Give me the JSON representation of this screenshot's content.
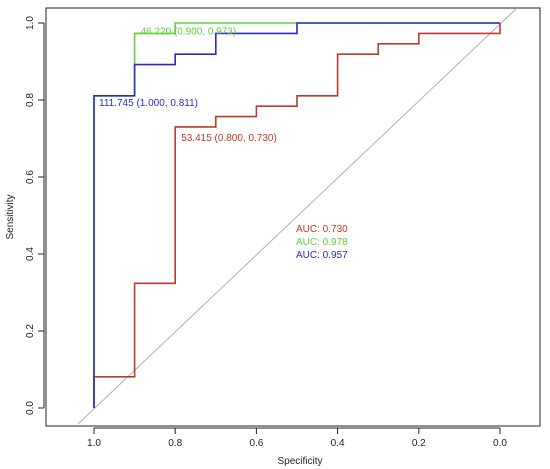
{
  "chart_data": {
    "type": "line",
    "title": "",
    "xlabel": "Specificity",
    "ylabel": "Sensitivity",
    "xlim": [
      1.0,
      0.0
    ],
    "ylim": [
      0.0,
      1.0
    ],
    "x_ticks": [
      "1.0",
      "0.8",
      "0.6",
      "0.4",
      "0.2",
      "0.0"
    ],
    "y_ticks": [
      "0.0",
      "0.2",
      "0.4",
      "0.6",
      "0.8",
      "1.0"
    ],
    "x_tick_values": [
      1.0,
      0.8,
      0.6,
      0.4,
      0.2,
      0.0
    ],
    "y_tick_values": [
      0.0,
      0.2,
      0.4,
      0.6,
      0.8,
      1.0
    ],
    "diagonal": {
      "color": "#b0b0b0"
    },
    "series": [
      {
        "color": "#c0392b",
        "auc_label": "AUC: 0.730",
        "points": [
          [
            1.0,
            0.0
          ],
          [
            1.0,
            0.081
          ],
          [
            0.9,
            0.081
          ],
          [
            0.9,
            0.324
          ],
          [
            0.8,
            0.324
          ],
          [
            0.8,
            0.73
          ],
          [
            0.7,
            0.73
          ],
          [
            0.7,
            0.757
          ],
          [
            0.6,
            0.757
          ],
          [
            0.6,
            0.784
          ],
          [
            0.5,
            0.784
          ],
          [
            0.5,
            0.811
          ],
          [
            0.4,
            0.811
          ],
          [
            0.4,
            0.919
          ],
          [
            0.3,
            0.919
          ],
          [
            0.3,
            0.946
          ],
          [
            0.2,
            0.946
          ],
          [
            0.2,
            0.973
          ],
          [
            0.0,
            0.973
          ],
          [
            0.0,
            1.0
          ]
        ],
        "threshold_label": "53.415 (0.800, 0.730)",
        "threshold_point": [
          0.8,
          0.73
        ]
      },
      {
        "color": "#5fd138",
        "auc_label": "AUC: 0.978",
        "points": [
          [
            1.0,
            0.0
          ],
          [
            1.0,
            0.811
          ],
          [
            0.9,
            0.811
          ],
          [
            0.9,
            0.973
          ],
          [
            0.8,
            0.973
          ],
          [
            0.8,
            1.0
          ],
          [
            0.0,
            1.0
          ]
        ],
        "threshold_label": "46.220 (0.900, 0.973)",
        "threshold_point": [
          0.9,
          0.973
        ]
      },
      {
        "color": "#2a2ac8",
        "auc_label": "AUC: 0.957",
        "points": [
          [
            1.0,
            0.0
          ],
          [
            1.0,
            0.811
          ],
          [
            0.9,
            0.811
          ],
          [
            0.9,
            0.892
          ],
          [
            0.8,
            0.892
          ],
          [
            0.8,
            0.919
          ],
          [
            0.7,
            0.919
          ],
          [
            0.7,
            0.973
          ],
          [
            0.5,
            0.973
          ],
          [
            0.5,
            1.0
          ],
          [
            0.0,
            1.0
          ]
        ],
        "threshold_label": "111.745 (1.000, 0.811)",
        "threshold_point": [
          1.0,
          0.811
        ]
      }
    ]
  }
}
